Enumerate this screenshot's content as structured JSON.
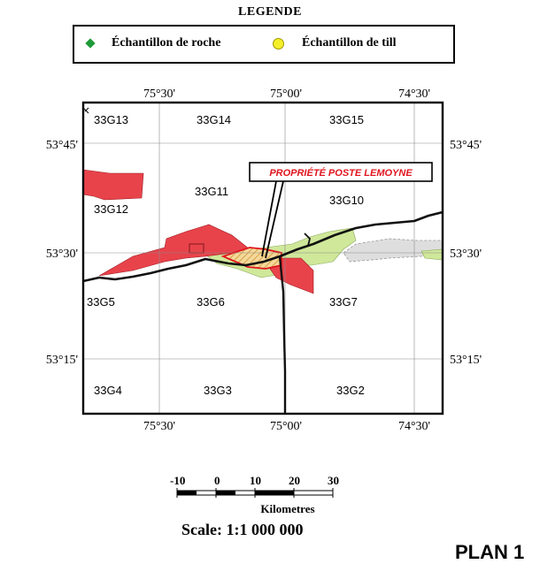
{
  "legend": {
    "title": "LEGENDE",
    "items": [
      {
        "label": "Échantillon de roche",
        "symbol": "green-diamond",
        "color": "#1e9a3a"
      },
      {
        "label": "Échantillon de till",
        "symbol": "yellow-circle",
        "color": "#f4ef2a"
      }
    ]
  },
  "map": {
    "longitude_labels_top": [
      "75°30'",
      "75°00'",
      "74°30'"
    ],
    "longitude_labels_bottom": [
      "75°30'",
      "75°00'",
      "74°30'"
    ],
    "latitude_labels_right": [
      "53°45'",
      "53°30'",
      "53°15'"
    ],
    "latitude_labels_left": [
      "53°45'",
      "53°30'",
      "53°15'"
    ],
    "sheets": {
      "g13": "33G13",
      "g14": "33G14",
      "g15": "33G15",
      "g12": "33G12",
      "g11": "33G11",
      "g10": "33G10",
      "g5": "33G5",
      "g6": "33G6",
      "g7": "33G7",
      "g4": "33G4",
      "g3": "33G3",
      "g2": "33G2"
    },
    "property_label": "PROPRIÉTÉ POSTE LEMOYNE",
    "colors": {
      "red_zone": "#e8434b",
      "green_zone": "#cfe89a",
      "gray_zone": "#dcdcdc",
      "property": "#e0141e"
    }
  },
  "scale_bar": {
    "ticks": [
      "-10",
      "0",
      "10",
      "20",
      "30"
    ],
    "unit": "Kilometres",
    "scale_text": "Scale: 1:1 000 000"
  },
  "plan_label": "PLAN 1"
}
